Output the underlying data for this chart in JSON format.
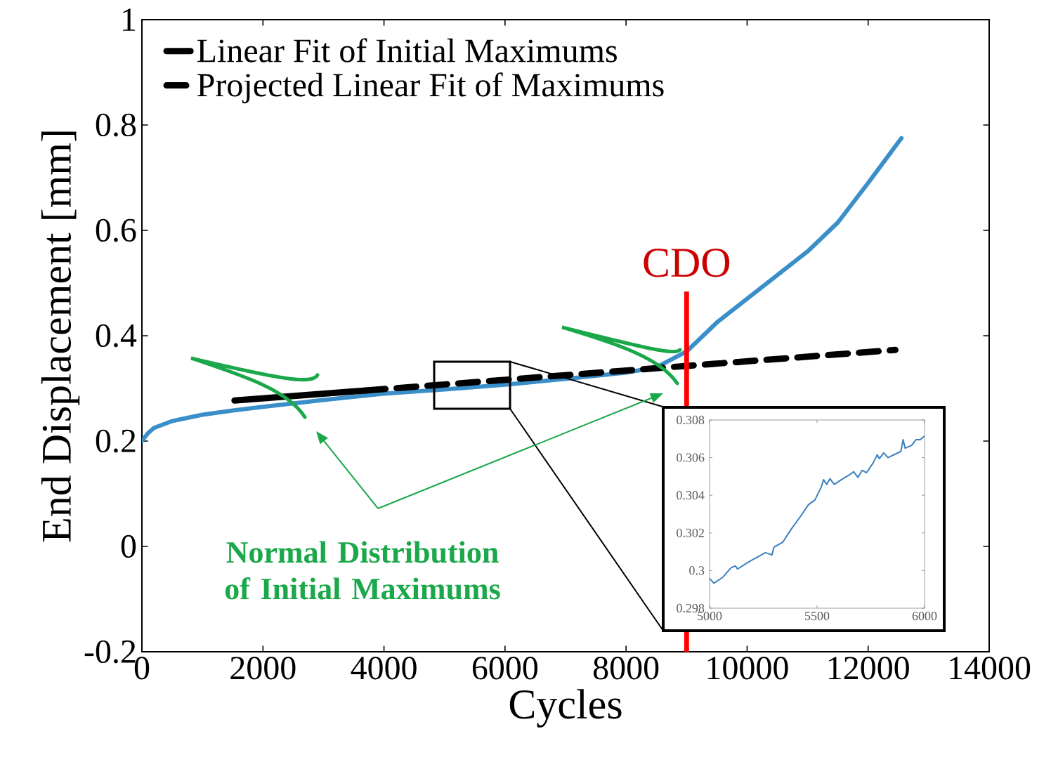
{
  "chart_data": [
    {
      "type": "line",
      "xlabel": "Cycles",
      "ylabel": "End Displacement [mm]",
      "xlim": [
        0,
        14000
      ],
      "ylim": [
        -0.2,
        1
      ],
      "xticks": [
        0,
        2000,
        4000,
        6000,
        8000,
        10000,
        12000,
        14000
      ],
      "yticks": [
        -0.2,
        0,
        0.2,
        0.4,
        0.6,
        0.8,
        1
      ],
      "grid": false,
      "marker": "none",
      "legend": "top left",
      "series": [
        {
          "color": "#3a8fc9",
          "line_style": "solid",
          "x": [
            0,
            100,
            200,
            500,
            1000,
            1500,
            2000,
            3000,
            4000,
            5000,
            6000,
            7000,
            8000,
            8500,
            9000,
            9500,
            10000,
            10500,
            11000,
            11500,
            12000,
            12550
          ],
          "values": [
            0.2,
            0.215,
            0.225,
            0.238,
            0.25,
            0.258,
            0.265,
            0.278,
            0.29,
            0.298,
            0.307,
            0.318,
            0.33,
            0.34,
            0.37,
            0.425,
            0.47,
            0.515,
            0.56,
            0.615,
            0.69,
            0.775
          ]
        },
        {
          "name": "Linear Fit of Initial Maximums",
          "color": "#000000",
          "line_style": "solid",
          "x": [
            1530,
            3700
          ],
          "values": [
            0.277,
            0.296
          ]
        },
        {
          "name": "Projected Linear Fit of Maximums",
          "color": "#000000",
          "line_style": "dashed",
          "x": [
            3700,
            12450
          ],
          "values": [
            0.296,
            0.373
          ]
        }
      ],
      "ref_lines": [
        {
          "axis": "x",
          "value": 9000,
          "label": "CDO",
          "color": "#ff0000",
          "line_style": "solid"
        }
      ],
      "annotations": [
        "Normal Distribution of Initial Maximums"
      ]
    },
    {
      "type": "line",
      "xlim": [
        5000,
        6000
      ],
      "ylim": [
        0.298,
        0.308
      ],
      "xticks": [
        5000,
        5500,
        6000
      ],
      "yticks": [
        0.298,
        0.3,
        0.302,
        0.304,
        0.306,
        0.308
      ],
      "grid": false,
      "marker": "none",
      "series": [
        {
          "color": "#3a7fc0",
          "line_style": "solid",
          "x": [
            5000,
            5020,
            5060,
            5100,
            5120,
            5130,
            5180,
            5220,
            5260,
            5290,
            5300,
            5340,
            5380,
            5420,
            5460,
            5490,
            5520,
            5530,
            5545,
            5560,
            5580,
            5620,
            5650,
            5670,
            5690,
            5710,
            5730,
            5760,
            5780,
            5790,
            5810,
            5830,
            5890,
            5900,
            5910,
            5940,
            5960,
            5980,
            6000
          ],
          "values": [
            0.29958,
            0.29933,
            0.29963,
            0.30015,
            0.30025,
            0.30008,
            0.30045,
            0.3007,
            0.30095,
            0.30083,
            0.30125,
            0.3015,
            0.3022,
            0.30283,
            0.3035,
            0.30375,
            0.30445,
            0.30483,
            0.30458,
            0.30488,
            0.30458,
            0.30488,
            0.30508,
            0.30525,
            0.30495,
            0.30533,
            0.3052,
            0.3057,
            0.30615,
            0.30595,
            0.30625,
            0.306,
            0.30633,
            0.30695,
            0.3065,
            0.30665,
            0.30695,
            0.30695,
            0.30715
          ]
        }
      ]
    }
  ]
}
